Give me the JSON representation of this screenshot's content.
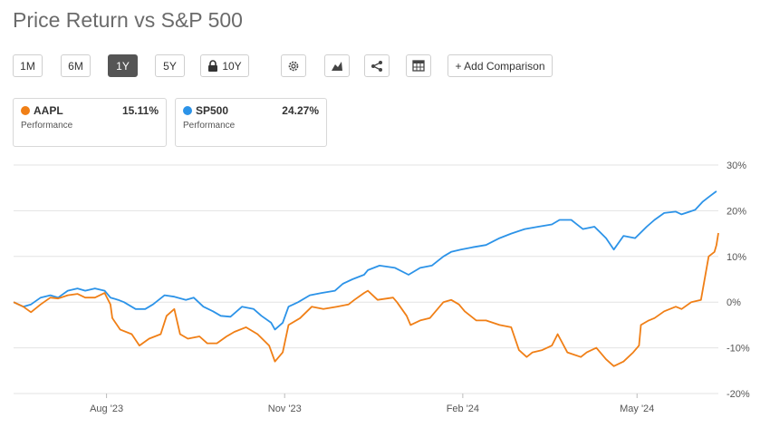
{
  "title": "Price Return vs S&P 500",
  "toolbar": {
    "buttons": [
      "1M",
      "6M",
      "1Y",
      "5Y",
      "10Y"
    ],
    "active": "1Y",
    "add_comparison": "+ Add Comparison"
  },
  "legend": [
    {
      "symbol": "AAPL",
      "value": "15.11%",
      "sub": "Performance",
      "color": "#F07F16"
    },
    {
      "symbol": "SP500",
      "value": "24.27%",
      "sub": "Performance",
      "color": "#2C93E8"
    }
  ],
  "chart_data": {
    "type": "line",
    "title": "Price Return vs S&P 500",
    "x_range": [
      "2023-06-14",
      "2024-06-12"
    ],
    "ylim": [
      -20,
      30
    ],
    "y_ticks": [
      30,
      20,
      10,
      0,
      -10,
      -20
    ],
    "y_tick_labels": [
      "30%",
      "20%",
      "10%",
      "0%",
      "-10%",
      "-20%"
    ],
    "x_tick_labels": [
      "Aug '23",
      "Nov '23",
      "Feb '24",
      "May '24"
    ],
    "x_tick_dates": [
      "2023-08-01",
      "2023-11-01",
      "2024-02-01",
      "2024-05-01"
    ],
    "series": [
      {
        "name": "SP500",
        "color": "#2C93E8",
        "points": [
          [
            "2023-06-14",
            0
          ],
          [
            "2023-06-19",
            -1
          ],
          [
            "2023-06-23",
            -0.5
          ],
          [
            "2023-06-28",
            1
          ],
          [
            "2023-07-03",
            1.5
          ],
          [
            "2023-07-07",
            1
          ],
          [
            "2023-07-12",
            2.5
          ],
          [
            "2023-07-17",
            3
          ],
          [
            "2023-07-21",
            2.5
          ],
          [
            "2023-07-26",
            3
          ],
          [
            "2023-07-31",
            2.5
          ],
          [
            "2023-08-03",
            1
          ],
          [
            "2023-08-07",
            0.5
          ],
          [
            "2023-08-10",
            0
          ],
          [
            "2023-08-16",
            -1.5
          ],
          [
            "2023-08-21",
            -1.5
          ],
          [
            "2023-08-25",
            -0.5
          ],
          [
            "2023-08-31",
            1.5
          ],
          [
            "2023-09-05",
            1.2
          ],
          [
            "2023-09-11",
            0.5
          ],
          [
            "2023-09-15",
            1
          ],
          [
            "2023-09-20",
            -1
          ],
          [
            "2023-09-25",
            -2
          ],
          [
            "2023-09-29",
            -3
          ],
          [
            "2023-10-04",
            -3.2
          ],
          [
            "2023-10-10",
            -1
          ],
          [
            "2023-10-16",
            -1.5
          ],
          [
            "2023-10-20",
            -3
          ],
          [
            "2023-10-25",
            -4.5
          ],
          [
            "2023-10-27",
            -6
          ],
          [
            "2023-10-31",
            -4.5
          ],
          [
            "2023-11-03",
            -1
          ],
          [
            "2023-11-08",
            0
          ],
          [
            "2023-11-14",
            1.5
          ],
          [
            "2023-11-20",
            2
          ],
          [
            "2023-11-27",
            2.5
          ],
          [
            "2023-12-01",
            4
          ],
          [
            "2023-12-06",
            5
          ],
          [
            "2023-12-12",
            6
          ],
          [
            "2023-12-14",
            7
          ],
          [
            "2023-12-20",
            8
          ],
          [
            "2023-12-28",
            7.5
          ],
          [
            "2024-01-04",
            6
          ],
          [
            "2024-01-10",
            7.5
          ],
          [
            "2024-01-16",
            8
          ],
          [
            "2024-01-22",
            10
          ],
          [
            "2024-01-26",
            11
          ],
          [
            "2024-01-31",
            11.5
          ],
          [
            "2024-02-06",
            12
          ],
          [
            "2024-02-13",
            12.5
          ],
          [
            "2024-02-20",
            14
          ],
          [
            "2024-02-26",
            15
          ],
          [
            "2024-03-04",
            16
          ],
          [
            "2024-03-11",
            16.5
          ],
          [
            "2024-03-18",
            17
          ],
          [
            "2024-03-22",
            18
          ],
          [
            "2024-03-28",
            18
          ],
          [
            "2024-04-03",
            16
          ],
          [
            "2024-04-09",
            16.5
          ],
          [
            "2024-04-15",
            14
          ],
          [
            "2024-04-19",
            11.5
          ],
          [
            "2024-04-24",
            14.5
          ],
          [
            "2024-04-30",
            14
          ],
          [
            "2024-05-06",
            16.5
          ],
          [
            "2024-05-10",
            18
          ],
          [
            "2024-05-15",
            19.5
          ],
          [
            "2024-05-21",
            19.8
          ],
          [
            "2024-05-24",
            19.2
          ],
          [
            "2024-05-31",
            20.2
          ],
          [
            "2024-06-04",
            22
          ],
          [
            "2024-06-07",
            23
          ],
          [
            "2024-06-11",
            24.27
          ]
        ]
      },
      {
        "name": "AAPL",
        "color": "#F07F16",
        "points": [
          [
            "2023-06-14",
            0
          ],
          [
            "2023-06-19",
            -1
          ],
          [
            "2023-06-23",
            -2.2
          ],
          [
            "2023-06-28",
            -0.5
          ],
          [
            "2023-07-03",
            1
          ],
          [
            "2023-07-07",
            0.8
          ],
          [
            "2023-07-12",
            1.5
          ],
          [
            "2023-07-17",
            1.8
          ],
          [
            "2023-07-21",
            1
          ],
          [
            "2023-07-26",
            1
          ],
          [
            "2023-07-31",
            2
          ],
          [
            "2023-08-03",
            -0.5
          ],
          [
            "2023-08-04",
            -3.5
          ],
          [
            "2023-08-08",
            -6
          ],
          [
            "2023-08-14",
            -7
          ],
          [
            "2023-08-18",
            -9.5
          ],
          [
            "2023-08-23",
            -8
          ],
          [
            "2023-08-29",
            -7
          ],
          [
            "2023-09-01",
            -3
          ],
          [
            "2023-09-05",
            -1.5
          ],
          [
            "2023-09-08",
            -7
          ],
          [
            "2023-09-12",
            -8
          ],
          [
            "2023-09-18",
            -7.5
          ],
          [
            "2023-09-22",
            -9
          ],
          [
            "2023-09-27",
            -9
          ],
          [
            "2023-10-02",
            -7.5
          ],
          [
            "2023-10-06",
            -6.5
          ],
          [
            "2023-10-12",
            -5.5
          ],
          [
            "2023-10-18",
            -7
          ],
          [
            "2023-10-24",
            -9.5
          ],
          [
            "2023-10-27",
            -13
          ],
          [
            "2023-10-31",
            -11
          ],
          [
            "2023-11-03",
            -5
          ],
          [
            "2023-11-09",
            -3.5
          ],
          [
            "2023-11-15",
            -1
          ],
          [
            "2023-11-21",
            -1.5
          ],
          [
            "2023-11-28",
            -1
          ],
          [
            "2023-12-04",
            -0.5
          ],
          [
            "2023-12-07",
            0.5
          ],
          [
            "2023-12-12",
            2
          ],
          [
            "2023-12-14",
            2.5
          ],
          [
            "2023-12-19",
            0.5
          ],
          [
            "2023-12-27",
            1
          ],
          [
            "2023-12-29",
            0
          ],
          [
            "2024-01-03",
            -3
          ],
          [
            "2024-01-05",
            -5
          ],
          [
            "2024-01-10",
            -4
          ],
          [
            "2024-01-15",
            -3.5
          ],
          [
            "2024-01-22",
            0
          ],
          [
            "2024-01-26",
            0.5
          ],
          [
            "2024-01-30",
            -0.5
          ],
          [
            "2024-02-02",
            -2
          ],
          [
            "2024-02-08",
            -4
          ],
          [
            "2024-02-13",
            -4
          ],
          [
            "2024-02-20",
            -5
          ],
          [
            "2024-02-26",
            -5.5
          ],
          [
            "2024-03-01",
            -10.5
          ],
          [
            "2024-03-05",
            -12
          ],
          [
            "2024-03-08",
            -11
          ],
          [
            "2024-03-13",
            -10.5
          ],
          [
            "2024-03-18",
            -9.5
          ],
          [
            "2024-03-21",
            -7
          ],
          [
            "2024-03-26",
            -11
          ],
          [
            "2024-04-02",
            -12
          ],
          [
            "2024-04-05",
            -11
          ],
          [
            "2024-04-10",
            -10
          ],
          [
            "2024-04-15",
            -12.5
          ],
          [
            "2024-04-19",
            -14
          ],
          [
            "2024-04-24",
            -13
          ],
          [
            "2024-04-29",
            -11
          ],
          [
            "2024-05-02",
            -9.5
          ],
          [
            "2024-05-03",
            -5
          ],
          [
            "2024-05-07",
            -4
          ],
          [
            "2024-05-10",
            -3.5
          ],
          [
            "2024-05-15",
            -2
          ],
          [
            "2024-05-21",
            -1
          ],
          [
            "2024-05-24",
            -1.5
          ],
          [
            "2024-05-29",
            0
          ],
          [
            "2024-06-03",
            0.5
          ],
          [
            "2024-06-07",
            10
          ],
          [
            "2024-06-10",
            11
          ],
          [
            "2024-06-11",
            12.5
          ],
          [
            "2024-06-12",
            15.11
          ]
        ]
      }
    ]
  }
}
